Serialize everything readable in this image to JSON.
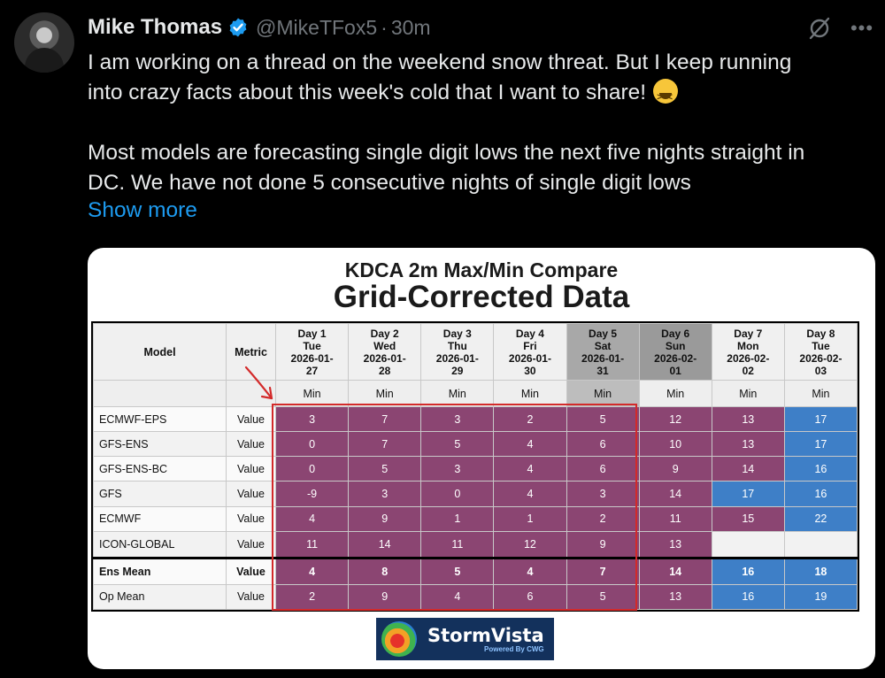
{
  "author": {
    "name": "Mike Thomas",
    "handle": "@MikeTFox5",
    "separator": "·",
    "time": "30m"
  },
  "icons": {
    "verified": "verified-badge-icon",
    "grok": "grok-icon",
    "more": "more-options-icon"
  },
  "colors": {
    "link": "#1d9bf0",
    "verified": "#1d9bf0",
    "cell_purple": "#8b4572",
    "cell_blue": "#3e7fc7",
    "highlight_box": "#d32a2a"
  },
  "tweet": {
    "line1": "I am working on a thread on the weekend snow threat. But I keep running",
    "line2": "into crazy facts about this week's cold that I want to share!",
    "emoji": "😆",
    "line3": "Most models are forecasting single digit lows the next five nights straight in",
    "line4": "DC. We have not done 5 consecutive nights of single digit lows",
    "show_more": "Show more"
  },
  "card": {
    "title": "KDCA 2m Max/Min Compare",
    "subtitle": "Grid-Corrected Data",
    "model_header": "Model",
    "metric_header": "Metric",
    "days": [
      {
        "day": "Day 1",
        "dow": "Tue",
        "date1": "2026-01-",
        "date2": "27",
        "unit": "Min"
      },
      {
        "day": "Day 2",
        "dow": "Wed",
        "date1": "2026-01-",
        "date2": "28",
        "unit": "Min"
      },
      {
        "day": "Day 3",
        "dow": "Thu",
        "date1": "2026-01-",
        "date2": "29",
        "unit": "Min"
      },
      {
        "day": "Day 4",
        "dow": "Fri",
        "date1": "2026-01-",
        "date2": "30",
        "unit": "Min"
      },
      {
        "day": "Day 5",
        "dow": "Sat",
        "date1": "2026-01-",
        "date2": "31",
        "unit": "Min"
      },
      {
        "day": "Day 6",
        "dow": "Sun",
        "date1": "2026-02-",
        "date2": "01",
        "unit": "Min"
      },
      {
        "day": "Day 7",
        "dow": "Mon",
        "date1": "2026-02-",
        "date2": "02",
        "unit": "Min"
      },
      {
        "day": "Day 8",
        "dow": "Tue",
        "date1": "2026-02-",
        "date2": "03",
        "unit": "Min"
      }
    ],
    "rows": [
      {
        "model": "ECMWF-EPS",
        "metric": "Value",
        "values": [
          "3",
          "7",
          "3",
          "2",
          "5",
          "12",
          "13",
          "17"
        ],
        "colors": [
          "p",
          "p",
          "p",
          "p",
          "p",
          "p",
          "p",
          "b"
        ],
        "bold": false
      },
      {
        "model": "GFS-ENS",
        "metric": "Value",
        "values": [
          "0",
          "7",
          "5",
          "4",
          "6",
          "10",
          "13",
          "17"
        ],
        "colors": [
          "p",
          "p",
          "p",
          "p",
          "p",
          "p",
          "p",
          "b"
        ],
        "bold": false
      },
      {
        "model": "GFS-ENS-BC",
        "metric": "Value",
        "values": [
          "0",
          "5",
          "3",
          "4",
          "6",
          "9",
          "14",
          "16"
        ],
        "colors": [
          "p",
          "p",
          "p",
          "p",
          "p",
          "p",
          "p",
          "b"
        ],
        "bold": false
      },
      {
        "model": "GFS",
        "metric": "Value",
        "values": [
          "-9",
          "3",
          "0",
          "4",
          "3",
          "14",
          "17",
          "16"
        ],
        "colors": [
          "p",
          "p",
          "p",
          "p",
          "p",
          "p",
          "b",
          "b"
        ],
        "bold": false
      },
      {
        "model": "ECMWF",
        "metric": "Value",
        "values": [
          "4",
          "9",
          "1",
          "1",
          "2",
          "11",
          "15",
          "22"
        ],
        "colors": [
          "p",
          "p",
          "p",
          "p",
          "p",
          "p",
          "p",
          "b"
        ],
        "bold": false
      },
      {
        "model": "ICON-GLOBAL",
        "metric": "Value",
        "values": [
          "11",
          "14",
          "11",
          "12",
          "9",
          "13",
          "",
          ""
        ],
        "colors": [
          "p",
          "p",
          "p",
          "p",
          "p",
          "p",
          "e",
          "e"
        ],
        "bold": false
      },
      {
        "model": "Ens Mean",
        "metric": "Value",
        "values": [
          "4",
          "8",
          "5",
          "4",
          "7",
          "14",
          "16",
          "18"
        ],
        "colors": [
          "p",
          "p",
          "p",
          "p",
          "p",
          "p",
          "b",
          "b"
        ],
        "bold": true
      },
      {
        "model": "Op Mean",
        "metric": "Value",
        "values": [
          "2",
          "9",
          "4",
          "6",
          "5",
          "13",
          "16",
          "19"
        ],
        "colors": [
          "p",
          "p",
          "p",
          "p",
          "p",
          "p",
          "b",
          "b"
        ],
        "bold": false
      }
    ],
    "logo_name": "StormVista",
    "logo_sub": "Powered By CWG"
  }
}
